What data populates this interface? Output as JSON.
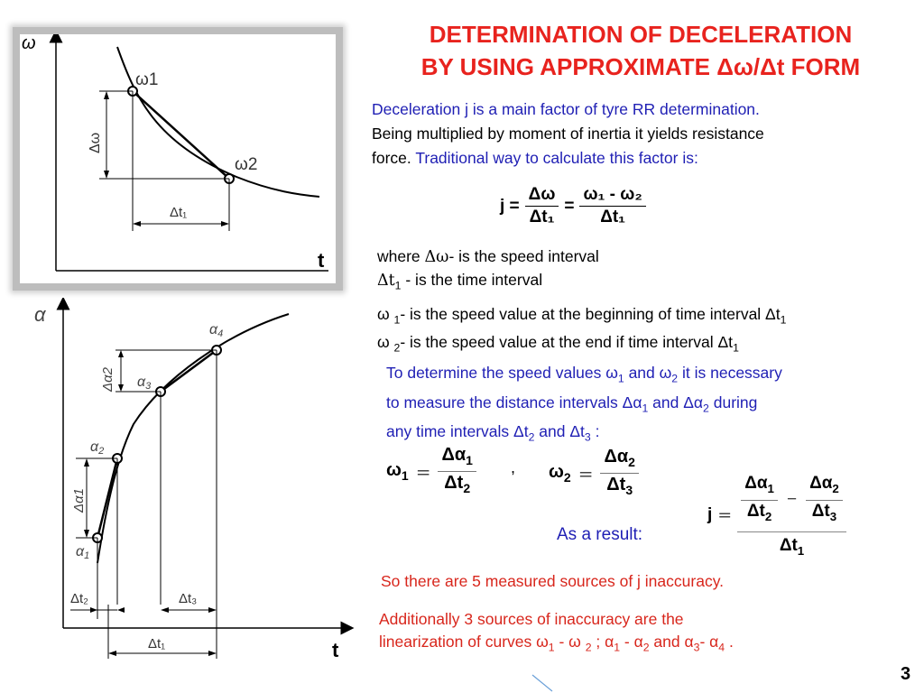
{
  "title": {
    "line1": "DETERMINATION OF DECELERATION",
    "line2": "BY USING APPROXIMATE Δω/Δt FORM"
  },
  "intro": {
    "blue1": "Deceleration j is a main factor of tyre RR determination.",
    "black1": "Being multiplied by moment of inertia it yields resistance",
    "black2": "force. ",
    "blue2": "Traditional way to calculate this factor is:"
  },
  "formula1": {
    "j": "j =",
    "num1": "Δω",
    "den1": "Δt₁",
    "eq": "=",
    "num2": "ω₁ - ω₂",
    "den2": "Δt₁"
  },
  "definitions": {
    "line1_pre": "where ",
    "line1_sym": "Δω",
    "line1_post": "- is the speed interval",
    "line2_sym": "Δt",
    "line2_sub": "1",
    "line2_post": " - is the time interval",
    "line3_sym": "ω ",
    "line3_sub": "1",
    "line3_post": "- is the speed value at the beginning of time interval Δt",
    "line3_end": "1",
    "line4_sym": "ω ",
    "line4_sub": "2",
    "line4_post": "- is the speed value at the end if time interval Δt",
    "line4_end": "1"
  },
  "paragraph2": {
    "l1a": "To determine the speed values ω",
    "l1b": "1",
    "l1c": " and ω",
    "l1d": "2",
    "l1e": " it is necessary",
    "l2a": "to measure the distance intervals Δα",
    "l2b": "1",
    "l2c": " and Δα",
    "l2d": "2",
    "l2e": " during",
    "l3a": "any time intervals Δt",
    "l3b": "2",
    "l3c": " and Δt",
    "l3d": "3",
    "l3e": " :"
  },
  "formula2": {
    "w1": "ω",
    "w1sub": "1",
    "eq1": "=",
    "num1": "Δα",
    "num1sub": "1",
    "den1": "Δt",
    "den1sub": "2",
    "comma": ",",
    "w2": "ω",
    "w2sub": "2",
    "eq2": "=",
    "num2": "Δα",
    "num2sub": "2",
    "den2": "Δt",
    "den2sub": "3"
  },
  "formula3": {
    "result_label": "As a result:",
    "j": "j",
    "eq": "=",
    "a_num": "Δα",
    "a_num_sub": "1",
    "a_den": "Δt",
    "a_den_sub": "2",
    "minus": "−",
    "b_num": "Δα",
    "b_num_sub": "2",
    "b_den": "Δt",
    "b_den_sub": "3",
    "bottom": "Δt",
    "bottom_sub": "1"
  },
  "conclusion1": "So there are 5 measured sources of j inaccuracy.",
  "conclusion2": {
    "line1": "Additionally 3 sources of inaccuracy are the",
    "l2a": "linearization of curves ω",
    "l2b": "1",
    "l2c": " - ω ",
    "l2d": "2",
    "l2e": " ; α",
    "l2f": "1",
    "l2g": " - α",
    "l2h": "2",
    "l2i": " and α",
    "l2j": "3",
    "l2k": "- α",
    "l2l": "4",
    "l2m": " ."
  },
  "page_number": "3",
  "figure1": {
    "y_axis": "ω",
    "x_axis": "t",
    "point1": "ω1",
    "point2": "ω2",
    "delta_y": "Δω",
    "delta_x": "Δt₁"
  },
  "figure2": {
    "y_axis": "α",
    "x_axis": "t",
    "a1": "α",
    "a1sub": "1",
    "a2": "α",
    "a2sub": "2",
    "a3": "α",
    "a3sub": "3",
    "a4": "α",
    "a4sub": "4",
    "da1": "Δα1",
    "da2": "Δα2",
    "dt1": "Δt₁",
    "dt2": "Δt₂",
    "dt3": "Δt₃"
  }
}
